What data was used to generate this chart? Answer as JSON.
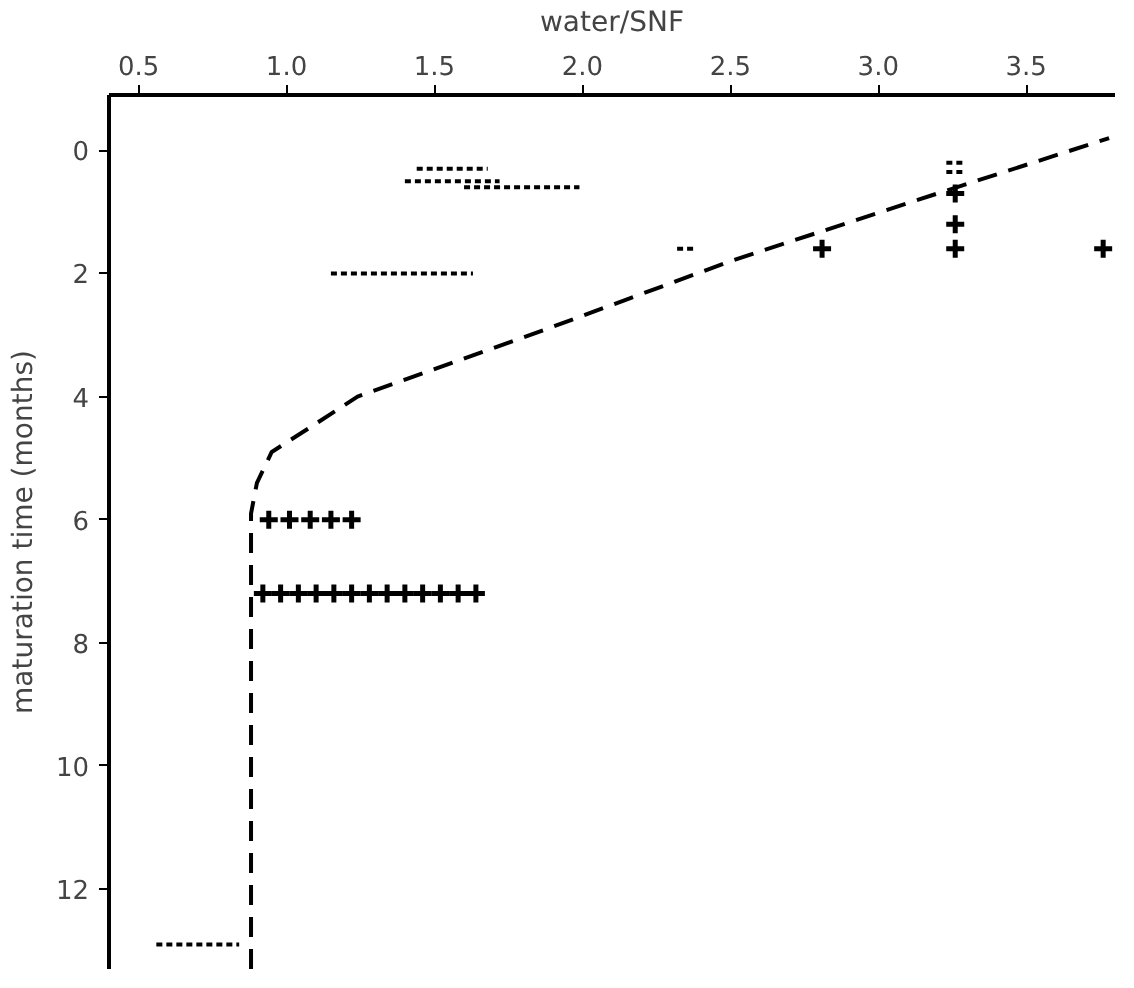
{
  "chart_data": {
    "type": "scatter",
    "xlabel": "water/SNF",
    "ylabel": "maturation time (months)",
    "xlim": [
      0.4,
      3.8
    ],
    "ylim": [
      13.3,
      -0.9
    ],
    "xticks": [
      0.5,
      {
        "value": 1,
        "label": "1.0"
      },
      1.5,
      {
        "value": 2,
        "label": "2.0"
      },
      2.5,
      {
        "value": 3,
        "label": "3.0"
      },
      3.5
    ],
    "yticks": [
      0,
      2,
      4,
      6,
      8,
      10,
      12
    ],
    "grid": false,
    "series": [
      {
        "type": "line",
        "line_style": "dotted",
        "color": "#000000",
        "x": [
          1.44,
          1.68
        ],
        "values": [
          0.3,
          0.3
        ]
      },
      {
        "type": "line",
        "line_style": "dotted",
        "color": "#000000",
        "x": [
          1.4,
          1.72
        ],
        "values": [
          0.5,
          0.5
        ]
      },
      {
        "type": "line",
        "line_style": "dotted",
        "color": "#000000",
        "x": [
          1.6,
          1.99
        ],
        "values": [
          0.6,
          0.6
        ]
      },
      {
        "type": "line",
        "line_style": "dotted",
        "color": "#000000",
        "x": [
          1.15,
          1.63
        ],
        "values": [
          2.0,
          2.0
        ]
      },
      {
        "type": "line",
        "line_style": "dotted",
        "color": "#000000",
        "x": [
          2.32,
          2.38
        ],
        "values": [
          1.6,
          1.6
        ]
      },
      {
        "type": "line",
        "line_style": "dotted",
        "color": "#000000",
        "x": [
          3.23,
          3.29
        ],
        "values": [
          0.2,
          0.2
        ]
      },
      {
        "type": "line",
        "line_style": "dotted",
        "color": "#000000",
        "x": [
          3.23,
          3.29
        ],
        "values": [
          0.35,
          0.35
        ]
      },
      {
        "type": "line",
        "line_style": "dotted",
        "color": "#000000",
        "x": [
          0.56,
          0.84
        ],
        "values": [
          12.9,
          12.9
        ]
      },
      {
        "marker": "cross",
        "color": "#000000",
        "x": [
          2.81,
          3.26,
          3.26,
          3.26,
          3.76
        ],
        "values": [
          1.6,
          0.7,
          1.2,
          1.6,
          1.6
        ]
      },
      {
        "marker": "cross",
        "color": "#000000",
        "x": [
          0.94,
          1.01,
          1.08,
          1.15,
          1.22
        ],
        "values": [
          6.0,
          6.0,
          6.0,
          6.0,
          6.0
        ]
      },
      {
        "marker": "cross",
        "color": "#000000",
        "x": [
          0.92,
          0.98,
          1.04,
          1.1,
          1.16,
          1.22,
          1.28,
          1.34,
          1.4,
          1.46,
          1.52,
          1.58,
          1.64
        ],
        "values": [
          7.2,
          7.2,
          7.2,
          7.2,
          7.2,
          7.2,
          7.2,
          7.2,
          7.2,
          7.2,
          7.2,
          7.2,
          7.2
        ]
      },
      {
        "type": "line",
        "line_style": "dashed",
        "color": "#000000",
        "x": [
          0.88,
          0.88,
          0.9,
          0.95,
          1.08,
          1.24,
          1.88,
          2.5,
          3.2,
          3.78
        ],
        "values": [
          13.3,
          5.9,
          5.4,
          4.9,
          4.5,
          4.0,
          2.9,
          1.8,
          0.7,
          -0.2
        ]
      }
    ]
  }
}
